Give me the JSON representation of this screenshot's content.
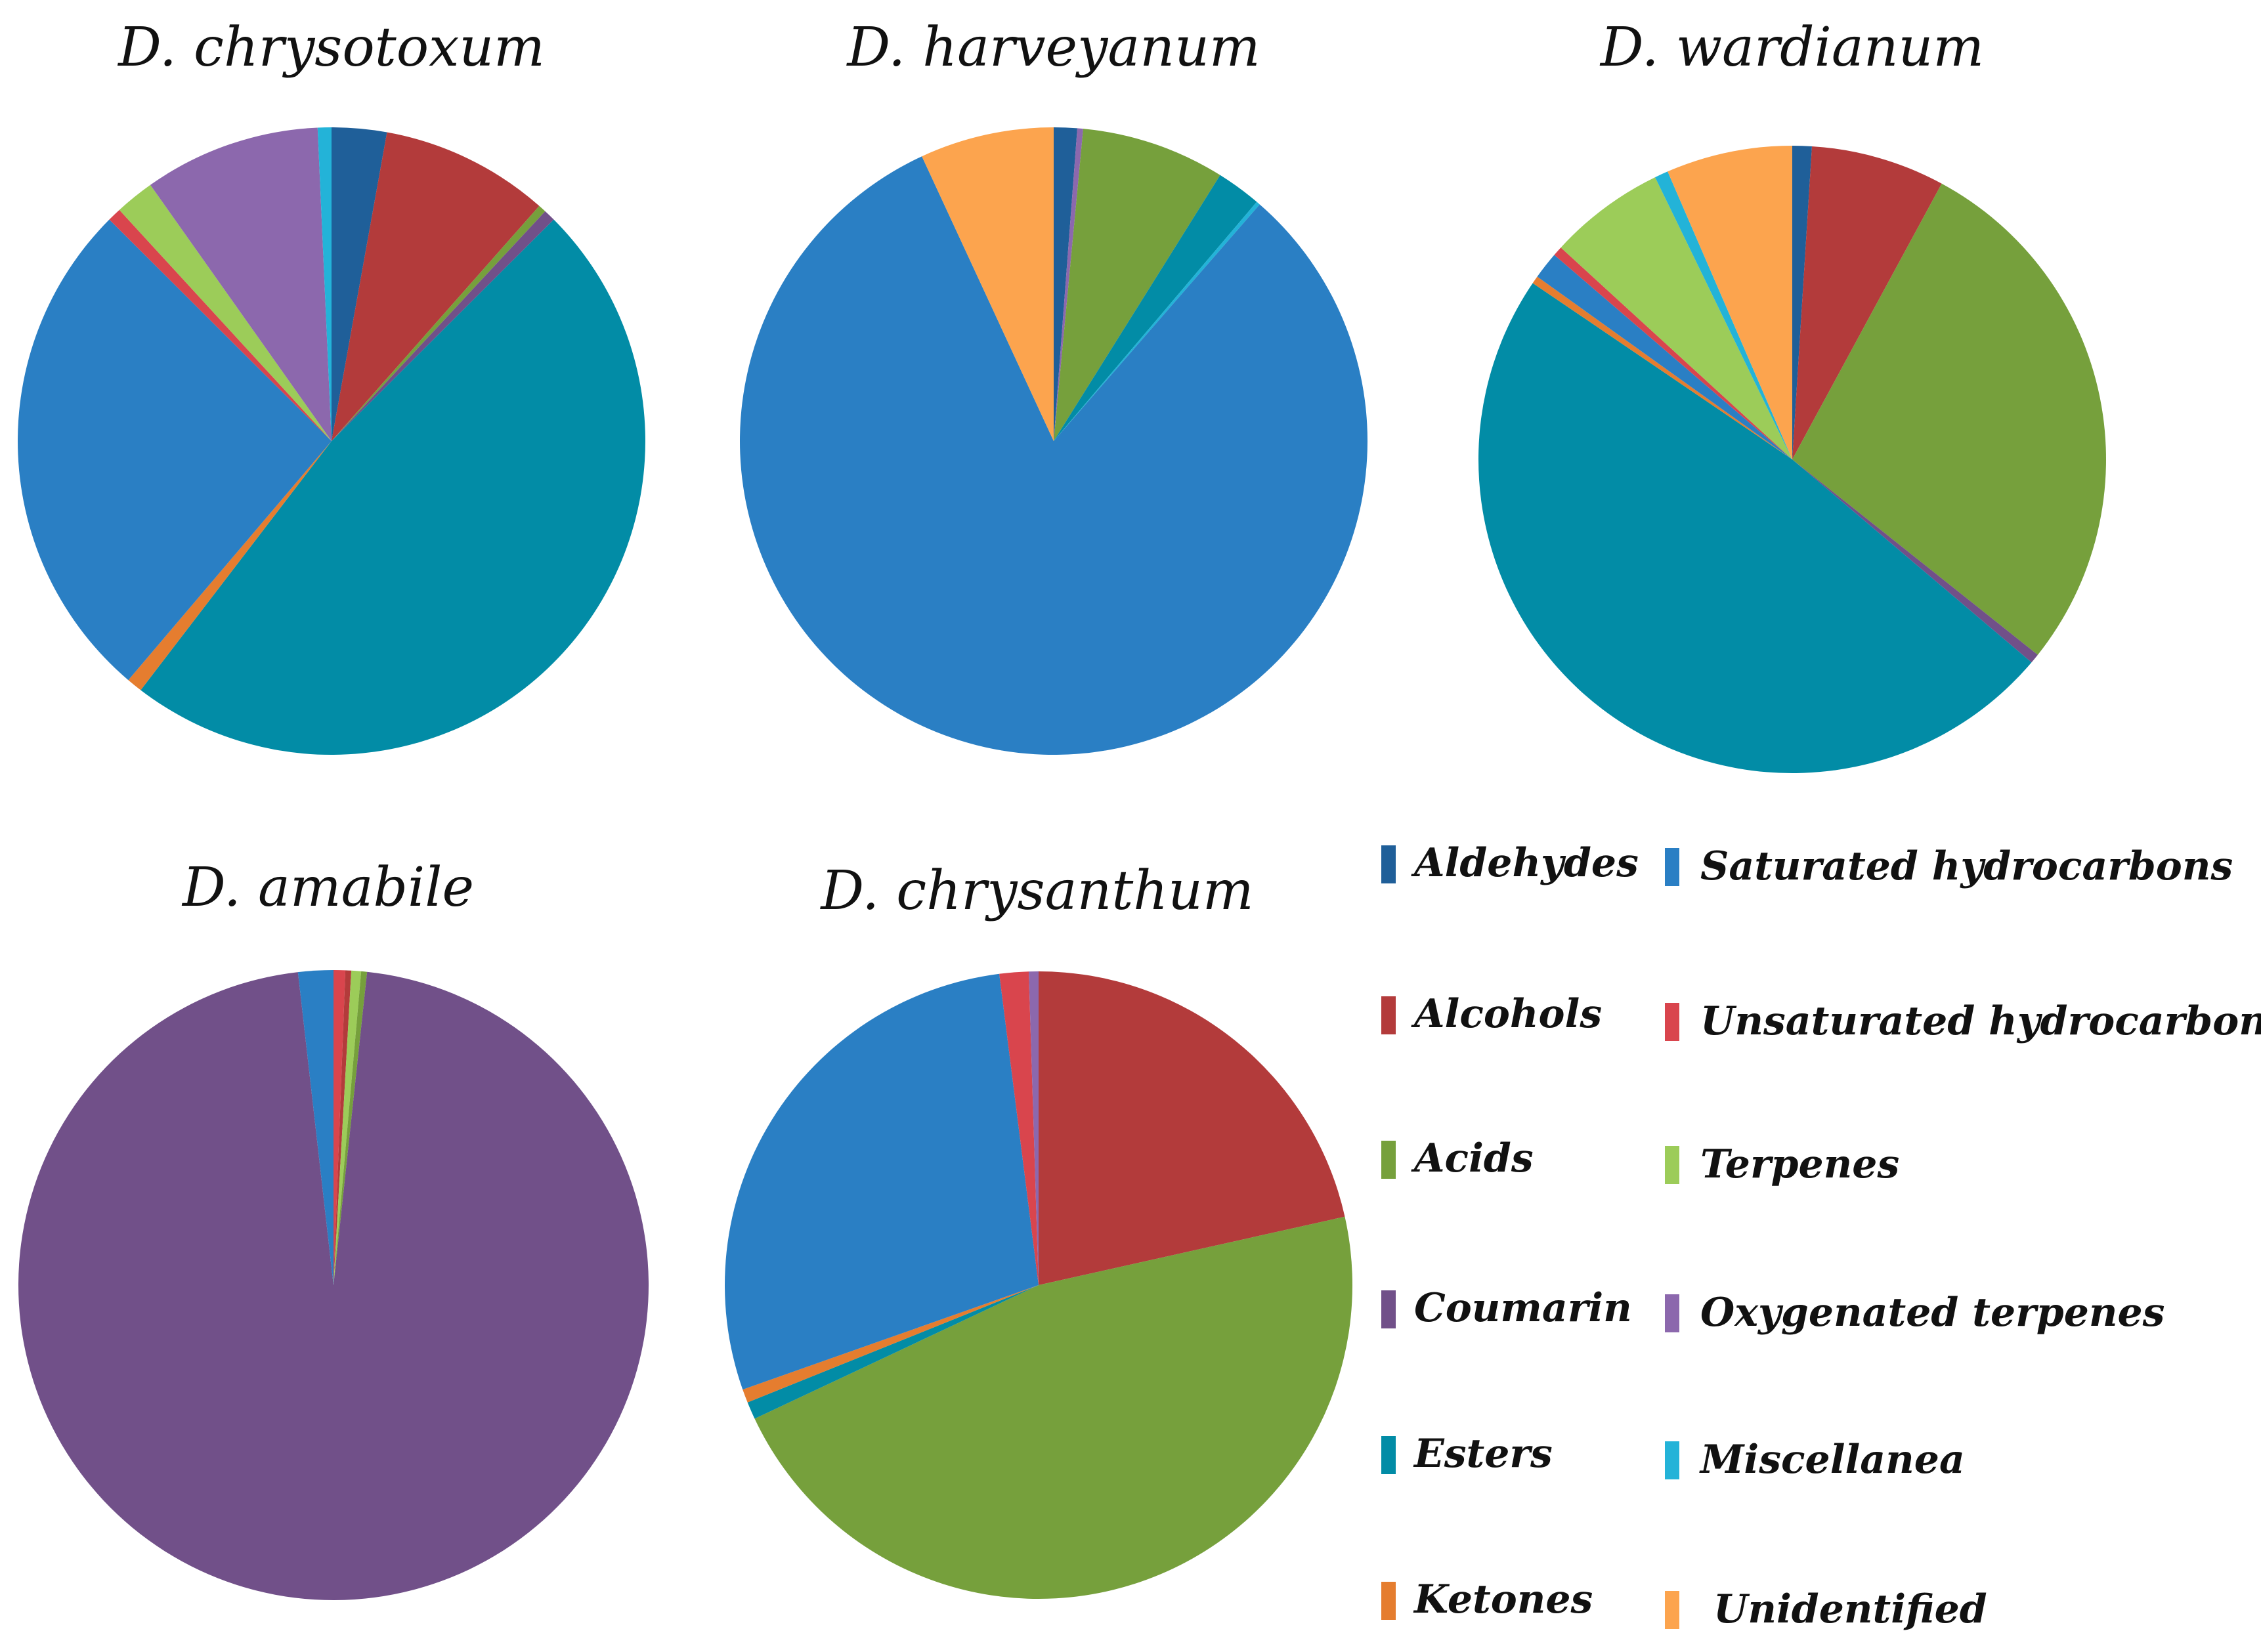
{
  "colors": {
    "Aldehydes": "#1f5f99",
    "Alcohols": "#b33b3b",
    "Acids": "#76a03c",
    "Coumarin": "#715089",
    "Esters": "#028ca6",
    "Ketones": "#e57d2f",
    "Saturated hydrocarbons": "#2a7fc4",
    "Unsaturated hydrocarbons": "#d9454d",
    "Terpenes": "#9ccc59",
    "Oxygenated terpenes": "#8c68ad",
    "Miscellanea": "#23b3d8",
    "Unidentified": "#fca44e"
  },
  "chart_data": [
    {
      "type": "pie",
      "title": "D. chrysotoxum",
      "slices": [
        {
          "label": "Aldehydes",
          "value": 2.8
        },
        {
          "label": "Alcohols",
          "value": 8.6
        },
        {
          "label": "Acids",
          "value": 0.4
        },
        {
          "label": "Coumarin",
          "value": 0.6
        },
        {
          "label": "Esters",
          "value": 47.4
        },
        {
          "label": "Ketones",
          "value": 0.8
        },
        {
          "label": "Saturated hydrocarbons",
          "value": 26.0
        },
        {
          "label": "Unsaturated hydrocarbons",
          "value": 0.7
        },
        {
          "label": "Terpenes",
          "value": 2.0
        },
        {
          "label": "Oxygenated terpenes",
          "value": 9.0
        },
        {
          "label": "Miscellanea",
          "value": 0.7
        }
      ]
    },
    {
      "type": "pie",
      "title": "D. harveyanum",
      "slices": [
        {
          "label": "Aldehydes",
          "value": 1.2
        },
        {
          "label": "Oxygenated terpenes",
          "value": 0.3
        },
        {
          "label": "Acids",
          "value": 7.4
        },
        {
          "label": "Esters",
          "value": 2.3
        },
        {
          "label": "Miscellanea",
          "value": 0.2
        },
        {
          "label": "Saturated hydrocarbons",
          "value": 81.7
        },
        {
          "label": "Unidentified",
          "value": 6.9
        }
      ]
    },
    {
      "type": "pie",
      "title": "D. wardianum",
      "slices": [
        {
          "label": "Aldehydes",
          "value": 1.0
        },
        {
          "label": "Alcohols",
          "value": 6.9
        },
        {
          "label": "Acids",
          "value": 27.8
        },
        {
          "label": "Coumarin",
          "value": 0.5
        },
        {
          "label": "Esters",
          "value": 48.3
        },
        {
          "label": "Ketones",
          "value": 0.4
        },
        {
          "label": "Saturated hydrocarbons",
          "value": 1.4
        },
        {
          "label": "Unsaturated hydrocarbons",
          "value": 0.5
        },
        {
          "label": "Terpenes",
          "value": 6.0
        },
        {
          "label": "Miscellanea",
          "value": 0.7
        },
        {
          "label": "Unidentified",
          "value": 6.5
        }
      ]
    },
    {
      "type": "pie",
      "title": "D. amabile",
      "slices": [
        {
          "label": "Unsaturated hydrocarbons",
          "value": 0.6
        },
        {
          "label": "Alcohols",
          "value": 0.3
        },
        {
          "label": "Terpenes",
          "value": 0.5
        },
        {
          "label": "Acids",
          "value": 0.3
        },
        {
          "label": "Coumarin",
          "value": 96.5
        },
        {
          "label": "Saturated hydrocarbons",
          "value": 1.8
        }
      ]
    },
    {
      "type": "pie",
      "title": "D. chrysanthum",
      "slices": [
        {
          "label": "Alcohols",
          "value": 21.5
        },
        {
          "label": "Acids",
          "value": 46.5
        },
        {
          "label": "Esters",
          "value": 0.9
        },
        {
          "label": "Ketones",
          "value": 0.7
        },
        {
          "label": "Saturated hydrocarbons",
          "value": 28.4
        },
        {
          "label": "Unsaturated hydrocarbons",
          "value": 1.5
        },
        {
          "label": "Oxygenated terpenes",
          "value": 0.5
        }
      ]
    }
  ],
  "legend": {
    "col1": [
      "Aldehydes",
      "Alcohols",
      "Acids",
      "Coumarin",
      "Esters",
      "Ketones"
    ],
    "col2": [
      "Saturated hydrocarbons",
      "Unsaturated hydrocarbons",
      "Terpenes",
      "Oxygenated terpenes",
      "Miscellanea",
      "Unidentified"
    ]
  }
}
